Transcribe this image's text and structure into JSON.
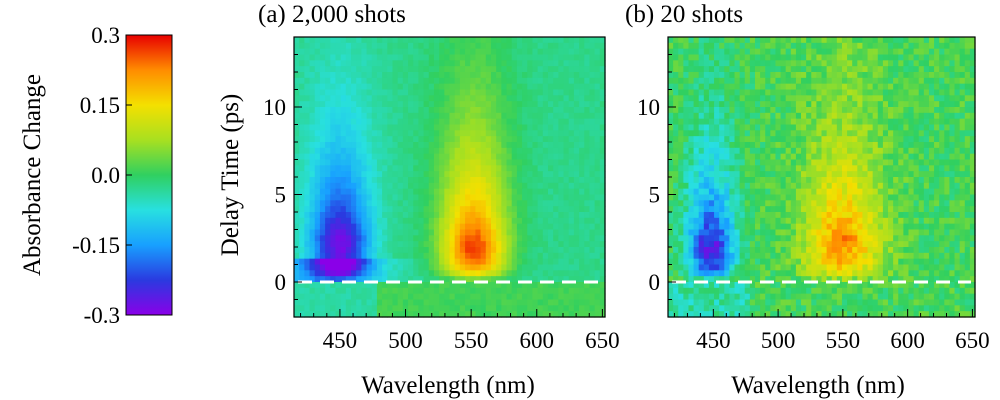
{
  "colorbar": {
    "label": "Absorbance  Change",
    "range": [
      -0.3,
      0.3
    ],
    "ticks": [
      "0.3",
      "0.15",
      "0.0",
      "-0.15",
      "-0.3"
    ],
    "tick_values": [
      0.3,
      0.15,
      0.0,
      -0.15,
      -0.3
    ],
    "colormap": [
      "#8a00e8",
      "#2a3ae0",
      "#18a0ff",
      "#28e0e0",
      "#30d060",
      "#a8e020",
      "#f4e000",
      "#ff8c00",
      "#e80000"
    ]
  },
  "chart_data": [
    {
      "type": "heatmap",
      "title": "(a)  2,000 shots",
      "xlabel": "Wavelength (nm)",
      "ylabel": "Delay  Time  (ps)",
      "xlim": [
        415,
        652
      ],
      "ylim": [
        -2,
        14
      ],
      "xticks": [
        450,
        500,
        550,
        600,
        650
      ],
      "xtick_labels": [
        "450",
        "500",
        "550",
        "600",
        "650"
      ],
      "yticks": [
        0,
        5,
        10
      ],
      "ytick_labels": [
        "0",
        "5",
        "10"
      ],
      "time_zero_line": 0,
      "features": [
        {
          "name": "negative band",
          "center_nm": 450,
          "peak_time_ps": 2.5,
          "peak_value": -0.26
        },
        {
          "name": "positive band",
          "center_nm": 552,
          "peak_time_ps": 2.0,
          "peak_value": 0.3
        }
      ]
    },
    {
      "type": "heatmap",
      "title": "(b)  20 shots",
      "xlabel": "Wavelength  (nm)",
      "ylabel": "",
      "xlim": [
        415,
        652
      ],
      "ylim": [
        -2,
        14
      ],
      "xticks": [
        450,
        500,
        550,
        600,
        650
      ],
      "xtick_labels": [
        "450",
        "500",
        "550",
        "600",
        "650"
      ],
      "yticks": [
        0,
        5,
        10
      ],
      "ytick_labels": [
        "0",
        "5",
        "10"
      ],
      "time_zero_line": 0,
      "features": [
        {
          "name": "negative band",
          "center_nm": 448,
          "peak_time_ps": 2.0,
          "peak_value": -0.28
        },
        {
          "name": "positive band",
          "center_nm": 550,
          "peak_time_ps": 2.5,
          "peak_value": 0.2
        }
      ]
    }
  ]
}
